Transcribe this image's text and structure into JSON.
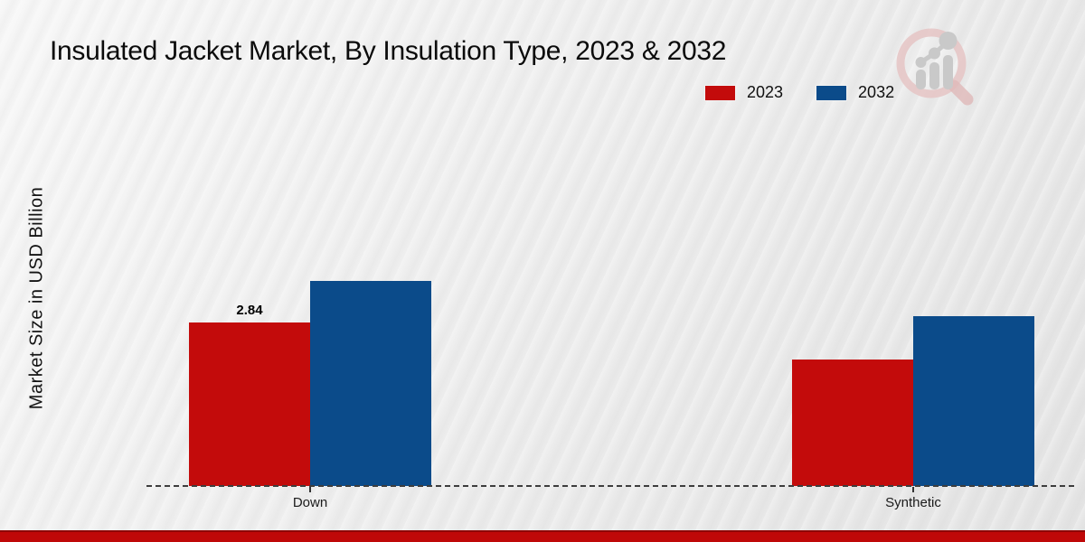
{
  "title": "Insulated Jacket Market, By Insulation Type, 2023 & 2032",
  "legend": {
    "items": [
      {
        "label": "2023",
        "color": "#c30b0b"
      },
      {
        "label": "2032",
        "color": "#0b4b8a"
      }
    ]
  },
  "watermark_icon": "magnifier-growth-chart-logo",
  "footer": {
    "bar_color": "#bf0808"
  },
  "chart_data": {
    "type": "bar",
    "categories": [
      "Down",
      "Synthetic"
    ],
    "series": [
      {
        "name": "2023",
        "color": "#c30b0b",
        "values": [
          2.84,
          2.2
        ]
      },
      {
        "name": "2032",
        "color": "#0b4b8a",
        "values": [
          3.56,
          2.95
        ]
      }
    ],
    "title": "Insulated Jacket Market, By Insulation Type, 2023 & 2032",
    "xlabel": "",
    "ylabel": "Market Size in USD Billion",
    "ylim": [
      0,
      4.5
    ],
    "grid": false,
    "legend_position": "top-right",
    "baseline_style": "dashed",
    "data_labels": [
      {
        "category": "Down",
        "series": "2023",
        "text": "2.84"
      }
    ]
  }
}
